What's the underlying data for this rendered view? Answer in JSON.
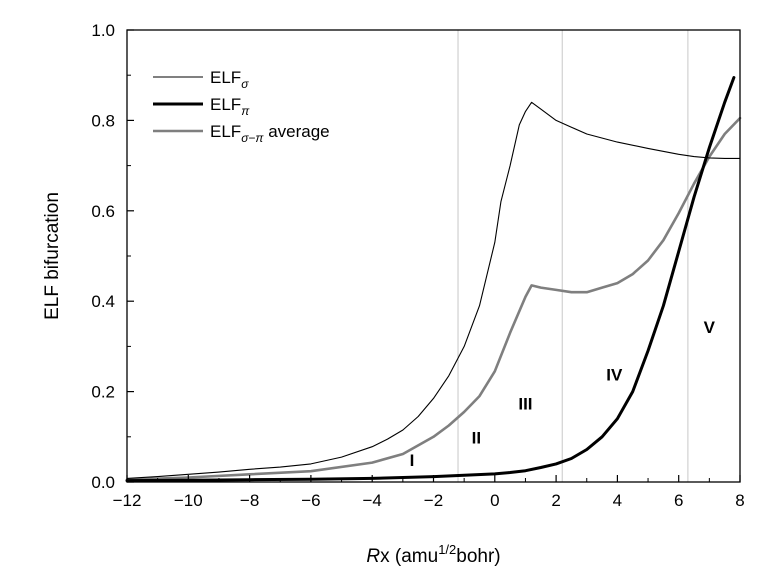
{
  "chart_data": {
    "type": "line",
    "xlabel": {
      "italic": "R",
      "text": "x (amu",
      "sup": "1/2",
      "tail": "bohr)"
    },
    "ylabel": "ELF bifurcation",
    "xlim": [
      -12,
      8
    ],
    "ylim": [
      0,
      1.0
    ],
    "xticks": [
      -12,
      -10,
      -8,
      -6,
      -4,
      -2,
      0,
      2,
      4,
      6,
      8
    ],
    "xtick_labels": [
      "−12",
      "−10",
      "−8",
      "−6",
      "−4",
      "−2",
      "0",
      "2",
      "4",
      "6",
      "8"
    ],
    "yticks": [
      0,
      0.2,
      0.4,
      0.6,
      0.8,
      1.0
    ],
    "ytick_labels": [
      "0.0",
      "0.2",
      "0.4",
      "0.6",
      "0.8",
      "1.0"
    ],
    "grid": false,
    "legend_position": "top-left",
    "region_boundaries": [
      -1.2,
      2.2,
      6.3
    ],
    "region_labels": [
      {
        "text": "I",
        "x": -2.7,
        "y": 0.035
      },
      {
        "text": "II",
        "x": -0.6,
        "y": 0.085
      },
      {
        "text": "III",
        "x": 1.0,
        "y": 0.16
      },
      {
        "text": "IV",
        "x": 3.9,
        "y": 0.225
      },
      {
        "text": "V",
        "x": 7.0,
        "y": 0.33
      }
    ],
    "series": [
      {
        "name": "ELF",
        "name_sub": "σ",
        "color": "#000000",
        "width": "thin",
        "x": [
          -12,
          -11,
          -10,
          -9,
          -8,
          -7,
          -6,
          -5,
          -4,
          -3.5,
          -3,
          -2.5,
          -2,
          -1.5,
          -1,
          -0.5,
          0,
          0.2,
          0.5,
          0.8,
          1.0,
          1.2,
          1.5,
          2,
          2.5,
          3,
          4,
          5,
          6,
          6.5,
          7,
          7.5,
          8
        ],
        "y": [
          0.008,
          0.012,
          0.017,
          0.022,
          0.028,
          0.033,
          0.04,
          0.055,
          0.078,
          0.095,
          0.115,
          0.145,
          0.185,
          0.235,
          0.3,
          0.39,
          0.53,
          0.62,
          0.7,
          0.79,
          0.82,
          0.84,
          0.825,
          0.8,
          0.785,
          0.77,
          0.752,
          0.738,
          0.725,
          0.72,
          0.717,
          0.716,
          0.716
        ]
      },
      {
        "name": "ELF",
        "name_sub": "π",
        "color": "#000000",
        "width": "thick",
        "x": [
          -12,
          -10,
          -8,
          -6,
          -4,
          -3,
          -2,
          -1,
          0,
          0.5,
          1,
          1.5,
          2,
          2.5,
          3,
          3.5,
          4,
          4.5,
          5,
          5.5,
          6,
          6.5,
          7,
          7.5,
          7.8
        ],
        "y": [
          0.003,
          0.004,
          0.005,
          0.006,
          0.008,
          0.01,
          0.012,
          0.015,
          0.018,
          0.021,
          0.025,
          0.032,
          0.04,
          0.052,
          0.072,
          0.1,
          0.14,
          0.2,
          0.29,
          0.39,
          0.51,
          0.63,
          0.74,
          0.84,
          0.895
        ]
      },
      {
        "name": "ELF",
        "name_sub": "σ−π",
        "name_tail": " average",
        "color": "#7f7f7f",
        "width": "medium",
        "x": [
          -12,
          -10,
          -8,
          -6,
          -4,
          -3,
          -2,
          -1.5,
          -1,
          -0.5,
          0,
          0.5,
          1.0,
          1.2,
          1.5,
          2,
          2.5,
          3,
          3.5,
          4,
          4.5,
          5,
          5.5,
          6,
          6.5,
          7,
          7.5,
          8
        ],
        "y": [
          0.005,
          0.01,
          0.017,
          0.024,
          0.043,
          0.062,
          0.1,
          0.125,
          0.155,
          0.19,
          0.245,
          0.33,
          0.41,
          0.435,
          0.43,
          0.425,
          0.42,
          0.42,
          0.43,
          0.44,
          0.46,
          0.49,
          0.535,
          0.595,
          0.66,
          0.72,
          0.77,
          0.805
        ]
      }
    ]
  }
}
